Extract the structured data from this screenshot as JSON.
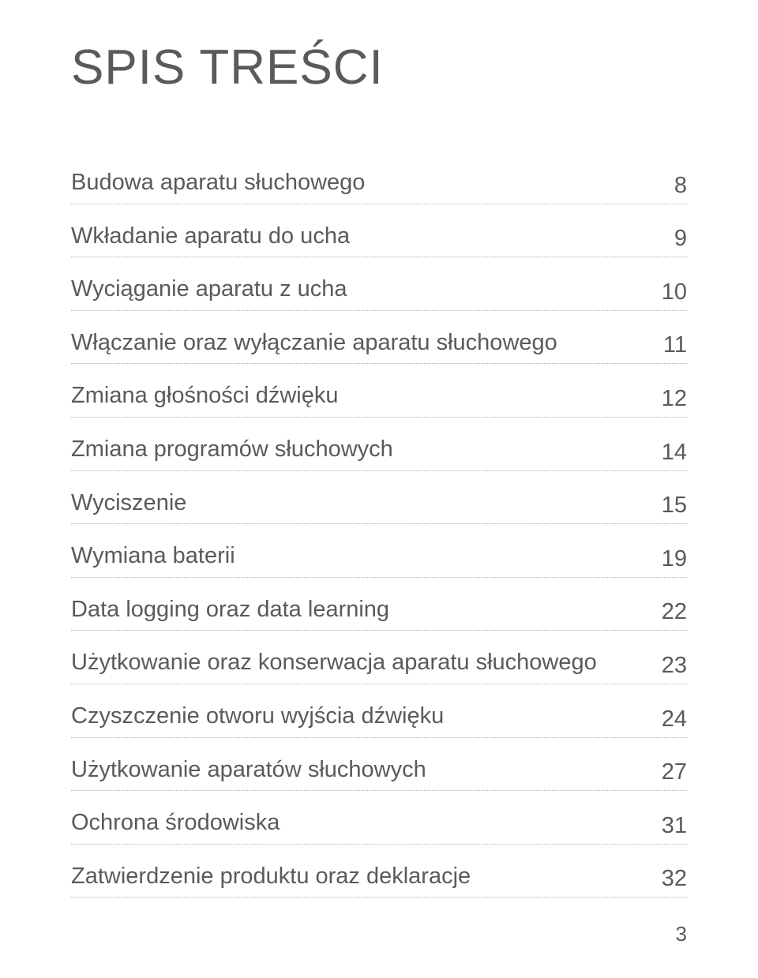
{
  "title": "SPIS TREŚCI",
  "toc": {
    "items": [
      {
        "label": "Budowa aparatu słuchowego",
        "page": "8"
      },
      {
        "label": "Wkładanie aparatu do ucha",
        "page": "9"
      },
      {
        "label": "Wyciąganie aparatu z ucha",
        "page": "10"
      },
      {
        "label": "Włączanie oraz wyłączanie aparatu słuchowego",
        "page": "11"
      },
      {
        "label": "Zmiana głośności dźwięku",
        "page": "12"
      },
      {
        "label": "Zmiana programów słuchowych",
        "page": "14"
      },
      {
        "label": "Wyciszenie",
        "page": "15"
      },
      {
        "label": "Wymiana baterii",
        "page": "19"
      },
      {
        "label": "Data logging oraz data learning",
        "page": "22"
      },
      {
        "label": "Użytkowanie oraz konserwacja aparatu słuchowego",
        "page": "23"
      },
      {
        "label": "Czyszczenie otworu wyjścia dźwięku",
        "page": "24"
      },
      {
        "label": "Użytkowanie aparatów słuchowych",
        "page": "27"
      },
      {
        "label": "Ochrona środowiska",
        "page": "31"
      },
      {
        "label": "Zatwierdzenie produktu oraz deklaracje",
        "page": "32"
      }
    ]
  },
  "page_number": "3",
  "styles": {
    "background_color": "#ffffff",
    "text_color": "#5a5a5a",
    "title_fontsize": 62,
    "body_fontsize": 29,
    "page_number_fontsize": 26,
    "border_color": "#b0b0b0",
    "border_style": "dotted"
  }
}
